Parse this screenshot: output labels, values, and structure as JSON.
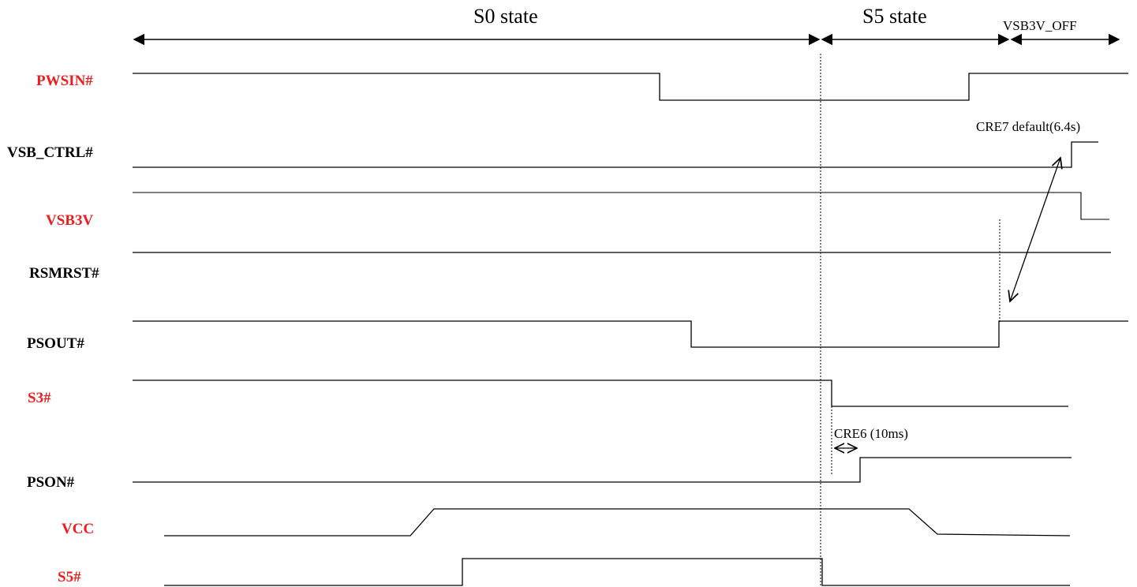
{
  "states": {
    "s0": "S0 state",
    "s5": "S5 state",
    "vsb_off": "VSB3V_OFF"
  },
  "annotations": {
    "cre7": "CRE7 default(6.4s)",
    "cre6": "CRE6 (10ms)"
  },
  "signals": [
    {
      "name": "PWSIN#",
      "color": "#ee1c1c"
    },
    {
      "name": "VSB_CTRL#",
      "color": "#000000"
    },
    {
      "name": "VSB3V",
      "color": "#ee1c1c"
    },
    {
      "name": "RSMRST#",
      "color": "#000000"
    },
    {
      "name": "PSOUT#",
      "color": "#000000"
    },
    {
      "name": "S3#",
      "color": "#ee1c1c"
    },
    {
      "name": "PSON#",
      "color": "#000000"
    },
    {
      "name": "VCC",
      "color": "#ee1c1c"
    },
    {
      "name": "S5#",
      "color": "#ee1c1c"
    }
  ]
}
